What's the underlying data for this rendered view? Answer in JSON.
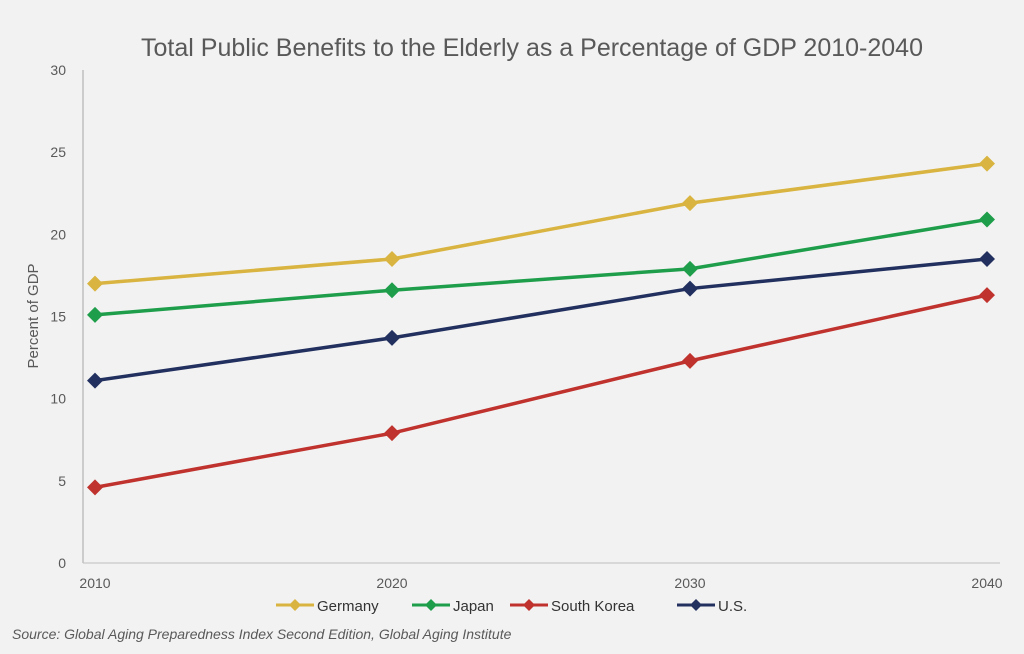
{
  "chart_data": {
    "type": "line",
    "title": "Total Public Benefits to the Elderly as a Percentage of GDP 2010-2040",
    "xlabel": "",
    "ylabel": "Percent of GDP",
    "categories": [
      "2010",
      "2020",
      "2030",
      "2040"
    ],
    "ylim": [
      0,
      30
    ],
    "yticks": [
      0,
      5,
      10,
      15,
      20,
      25,
      30
    ],
    "grid": false,
    "legend_position": "bottom",
    "marker": "diamond",
    "series": [
      {
        "name": "Germany",
        "color": "#d9b440",
        "values": [
          17.0,
          18.5,
          21.9,
          24.3
        ]
      },
      {
        "name": "Japan",
        "color": "#1e9e4a",
        "values": [
          15.1,
          16.6,
          17.9,
          20.9
        ]
      },
      {
        "name": "South Korea",
        "color": "#c0322d",
        "values": [
          4.6,
          7.9,
          12.3,
          16.3
        ]
      },
      {
        "name": "U.S.",
        "color": "#22305f",
        "values": [
          11.1,
          13.7,
          16.7,
          18.5
        ]
      }
    ]
  },
  "source": "Source: Global Aging Preparedness Index Second Edition, Global Aging Institute"
}
